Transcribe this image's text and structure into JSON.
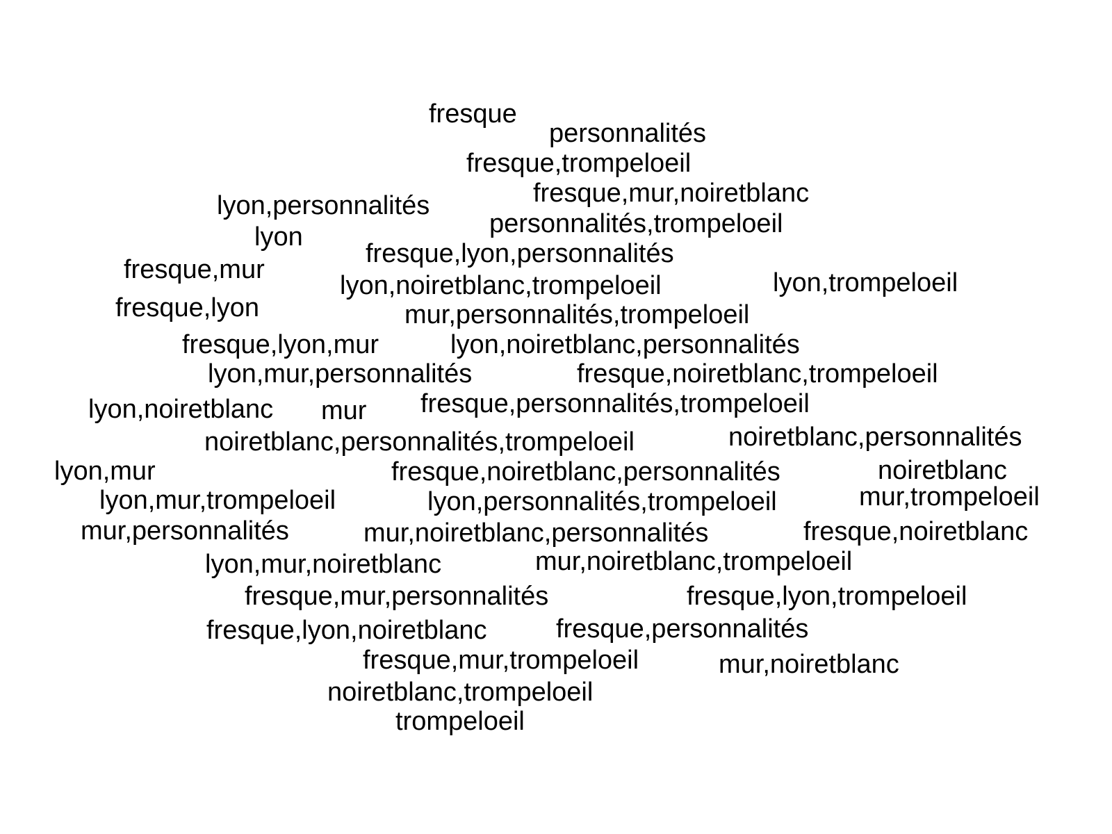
{
  "word_cloud": {
    "words": [
      "fresque",
      "personnalités",
      "fresque,trompeloeil",
      "fresque,mur,noiretblanc",
      "lyon,personnalités",
      "personnalités,trompeloeil",
      "lyon",
      "fresque,lyon,personnalités",
      "fresque,mur",
      "lyon,noiretblanc,trompeloeil",
      "lyon,trompeloeil",
      "fresque,lyon",
      "mur,personnalités,trompeloeil",
      "fresque,lyon,mur",
      "lyon,noiretblanc,personnalités",
      "lyon,mur,personnalités",
      "fresque,noiretblanc,trompeloeil",
      "lyon,noiretblanc",
      "mur",
      "fresque,personnalités,trompeloeil",
      "noiretblanc,personnalités,trompeloeil",
      "noiretblanc,personnalités",
      "lyon,mur",
      "fresque,noiretblanc,personnalités",
      "noiretblanc",
      "lyon,mur,trompeloeil",
      "lyon,personnalités,trompeloeil",
      "mur,trompeloeil",
      "mur,personnalités",
      "mur,noiretblanc,personnalités",
      "fresque,noiretblanc",
      "lyon,mur,noiretblanc",
      "mur,noiretblanc,trompeloeil",
      "fresque,mur,personnalités",
      "fresque,lyon,trompeloeil",
      "fresque,lyon,noiretblanc",
      "fresque,personnalités",
      "fresque,mur,trompeloeil",
      "mur,noiretblanc",
      "noiretblanc,trompeloeil",
      "trompeloeil"
    ],
    "text_color": "#000000",
    "background_color": "#ffffff"
  }
}
